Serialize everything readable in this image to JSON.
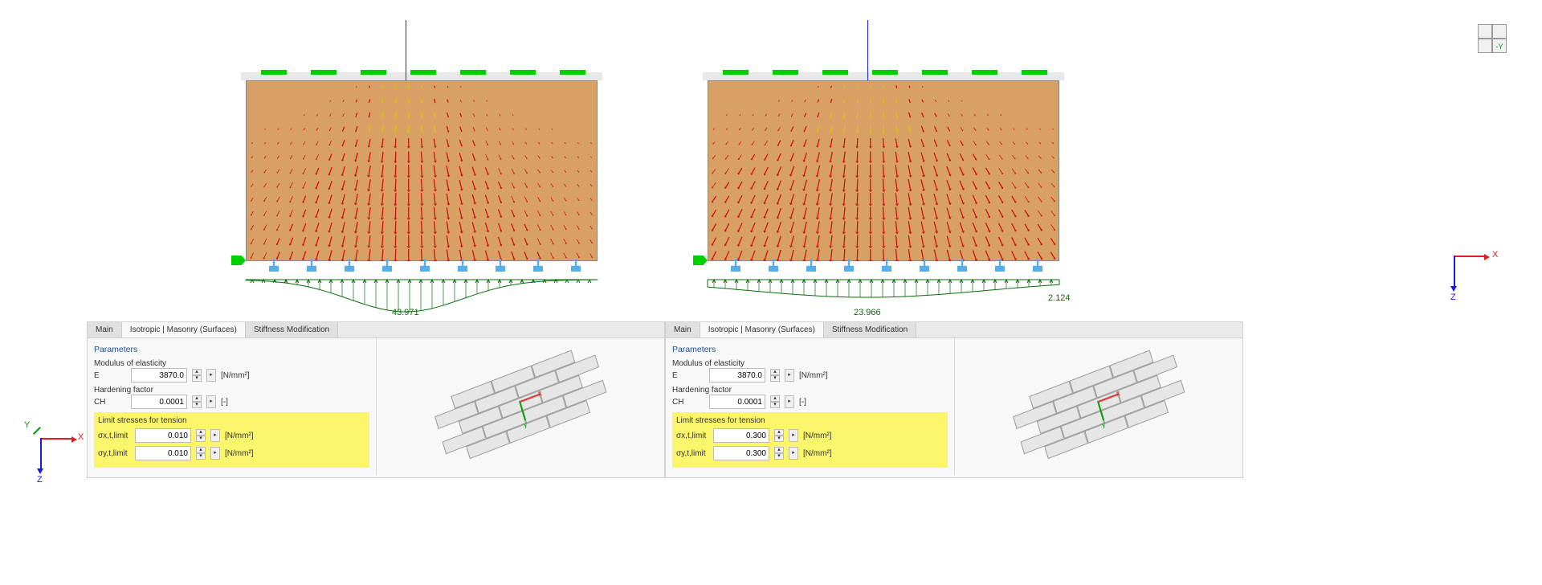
{
  "simulations": [
    {
      "reaction_center": "43.971",
      "reaction_right": ""
    },
    {
      "reaction_center": "23.966",
      "reaction_right": "2.124"
    }
  ],
  "wall": {
    "color": "#d9a066",
    "load_bar_color": "#00d000",
    "support_color": "#5aaee8",
    "reaction_color": "#0a6e0a",
    "stress_line_color": "#cc1111",
    "grid_cols": 27,
    "grid_rows": 13
  },
  "panels": [
    {
      "tabs": [
        "Main",
        "Isotropic | Masonry (Surfaces)",
        "Stiffness Modification"
      ],
      "active_tab": 1,
      "section_header": "Parameters",
      "modulus_label": "Modulus of elasticity",
      "modulus_sym": "E",
      "modulus_val": "3870.0",
      "modulus_unit": "[N/mm²]",
      "hardening_label": "Hardening factor",
      "hardening_sym": "CH",
      "hardening_val": "0.0001",
      "hardening_unit": "[-]",
      "limit_header": "Limit stresses for tension",
      "limit_x_sym": "σx,t,limit",
      "limit_x_val": "0.010",
      "limit_x_unit": "[N/mm²]",
      "limit_y_sym": "σy,t,limit",
      "limit_y_val": "0.010",
      "limit_y_unit": "[N/mm²]"
    },
    {
      "tabs": [
        "Main",
        "Isotropic | Masonry (Surfaces)",
        "Stiffness Modification"
      ],
      "active_tab": 1,
      "section_header": "Parameters",
      "modulus_label": "Modulus of elasticity",
      "modulus_sym": "E",
      "modulus_val": "3870.0",
      "modulus_unit": "[N/mm²]",
      "hardening_label": "Hardening factor",
      "hardening_sym": "CH",
      "hardening_val": "0.0001",
      "hardening_unit": "[-]",
      "limit_header": "Limit stresses for tension",
      "limit_x_sym": "σx,t,limit",
      "limit_x_val": "0.300",
      "limit_x_unit": "[N/mm²]",
      "limit_y_sym": "σy,t,limit",
      "limit_y_val": "0.300",
      "limit_y_unit": "[N/mm²]"
    }
  ],
  "axes": {
    "x_label": "X",
    "x_color": "#e02020",
    "z_label": "Z",
    "z_color": "#1a1ae0",
    "y_label": "Y",
    "y_color": "#00a000",
    "nav_label": "-Y"
  },
  "iso_preview": {
    "brick_color": "#e6e6e6",
    "border_color": "#999999",
    "rows": 5,
    "cols": 3
  }
}
